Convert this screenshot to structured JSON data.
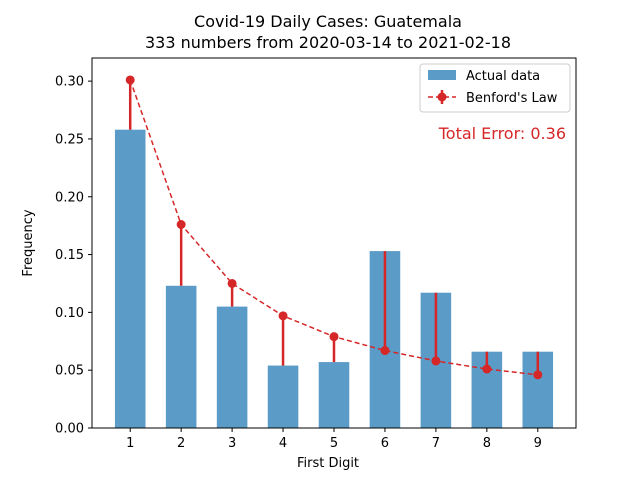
{
  "chart_data": {
    "type": "bar",
    "title": "Covid-19 Daily Cases: Guatemala",
    "subtitle": "333 numbers from 2020-03-14 to 2021-02-18",
    "xlabel": "First Digit",
    "ylabel": "Frequency",
    "categories": [
      "1",
      "2",
      "3",
      "4",
      "5",
      "6",
      "7",
      "8",
      "9"
    ],
    "x": [
      1,
      2,
      3,
      4,
      5,
      6,
      7,
      8,
      9
    ],
    "ylim": [
      0,
      0.32
    ],
    "yticks": [
      "0.00",
      "0.05",
      "0.10",
      "0.15",
      "0.20",
      "0.25",
      "0.30"
    ],
    "series": [
      {
        "name": "Actual data",
        "kind": "bar",
        "color": "#5b9bc8",
        "values": [
          0.258,
          0.123,
          0.105,
          0.054,
          0.057,
          0.153,
          0.117,
          0.066,
          0.066
        ]
      },
      {
        "name": "Benford's Law",
        "kind": "line-dashed-markers",
        "color": "#d62728",
        "values": [
          0.301,
          0.176,
          0.125,
          0.097,
          0.079,
          0.067,
          0.058,
          0.051,
          0.046
        ]
      }
    ],
    "annotation": "Total Error: 0.36",
    "annotation_color": "#d62728",
    "legend_position": "top-right",
    "grid": false
  }
}
